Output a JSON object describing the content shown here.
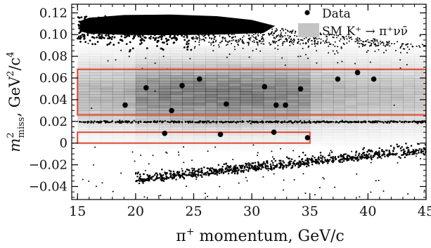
{
  "chart_data": {
    "type": "scatter",
    "x_axis": {
      "range": [
        14.5,
        45.0
      ],
      "ticks": [
        15,
        20,
        25,
        30,
        35,
        40,
        45
      ],
      "tick_labels": [
        "15",
        "20",
        "25",
        "30",
        "35",
        "40",
        "45"
      ],
      "minor_step": 1,
      "label_base": "π",
      "label_sup": "+",
      "label_rest": " momentum, GeV/c"
    },
    "y_axis": {
      "range": [
        -0.052,
        0.128
      ],
      "ticks": [
        -0.04,
        -0.02,
        0.0,
        0.02,
        0.04,
        0.06,
        0.08,
        0.1,
        0.12
      ],
      "tick_labels": [
        "−0.04",
        "−0.02",
        "0",
        "0.02",
        "0.04",
        "0.06",
        "0.08",
        "0.10",
        "0.12"
      ],
      "minor_step": 0.005,
      "label_base": "m",
      "label_sup": "2",
      "label_sub": "miss",
      "label_rest": ", GeV",
      "label_sup2": "2",
      "label_tail": "/c",
      "label_sup3": "4"
    },
    "legend": {
      "position": "top-right",
      "data_label": "Data",
      "sm_label": "SM K⁺ → π⁺νν̄"
    },
    "colors": {
      "data_points": "#000000",
      "signal_region_box": "#e2462f",
      "sm_band": "#bdbdbd",
      "background_points": "#000000"
    },
    "signal_regions": [
      {
        "name": "region-1",
        "x": [
          15,
          35
        ],
        "y": [
          0.0,
          0.01
        ]
      },
      {
        "name": "region-2",
        "x": [
          15,
          45
        ],
        "y": [
          0.026,
          0.068
        ]
      }
    ],
    "sm_expectation": {
      "description": "SM K+ -> pi+ nu nubar density (grey band)",
      "x": [
        15,
        45
      ],
      "y": [
        -0.02,
        0.09
      ],
      "peak_y": 0.045
    },
    "background_bands": [
      {
        "name": "K2pi-band",
        "y_center": 0.0195,
        "x": [
          15,
          45
        ]
      },
      {
        "name": "Kmu2-upper-region",
        "y_top": 0.118,
        "x": [
          15,
          45
        ]
      },
      {
        "name": "lower-tail",
        "y_at_15": -0.03,
        "y_at_45": -0.005
      }
    ],
    "series": [
      {
        "name": "Data",
        "marker": "filled-circle",
        "points": [
          [
            19.1,
            0.035
          ],
          [
            20.9,
            0.051
          ],
          [
            22.5,
            0.009
          ],
          [
            23.1,
            0.03
          ],
          [
            24.0,
            0.053
          ],
          [
            25.5,
            0.059
          ],
          [
            27.3,
            0.008
          ],
          [
            27.8,
            0.036
          ],
          [
            31.1,
            0.052
          ],
          [
            31.9,
            0.01
          ],
          [
            32.1,
            0.035
          ],
          [
            32.9,
            0.035
          ],
          [
            34.2,
            0.05
          ],
          [
            34.8,
            0.005
          ],
          [
            37.4,
            0.059
          ],
          [
            39.1,
            0.065
          ],
          [
            40.5,
            0.059
          ]
        ]
      }
    ]
  }
}
